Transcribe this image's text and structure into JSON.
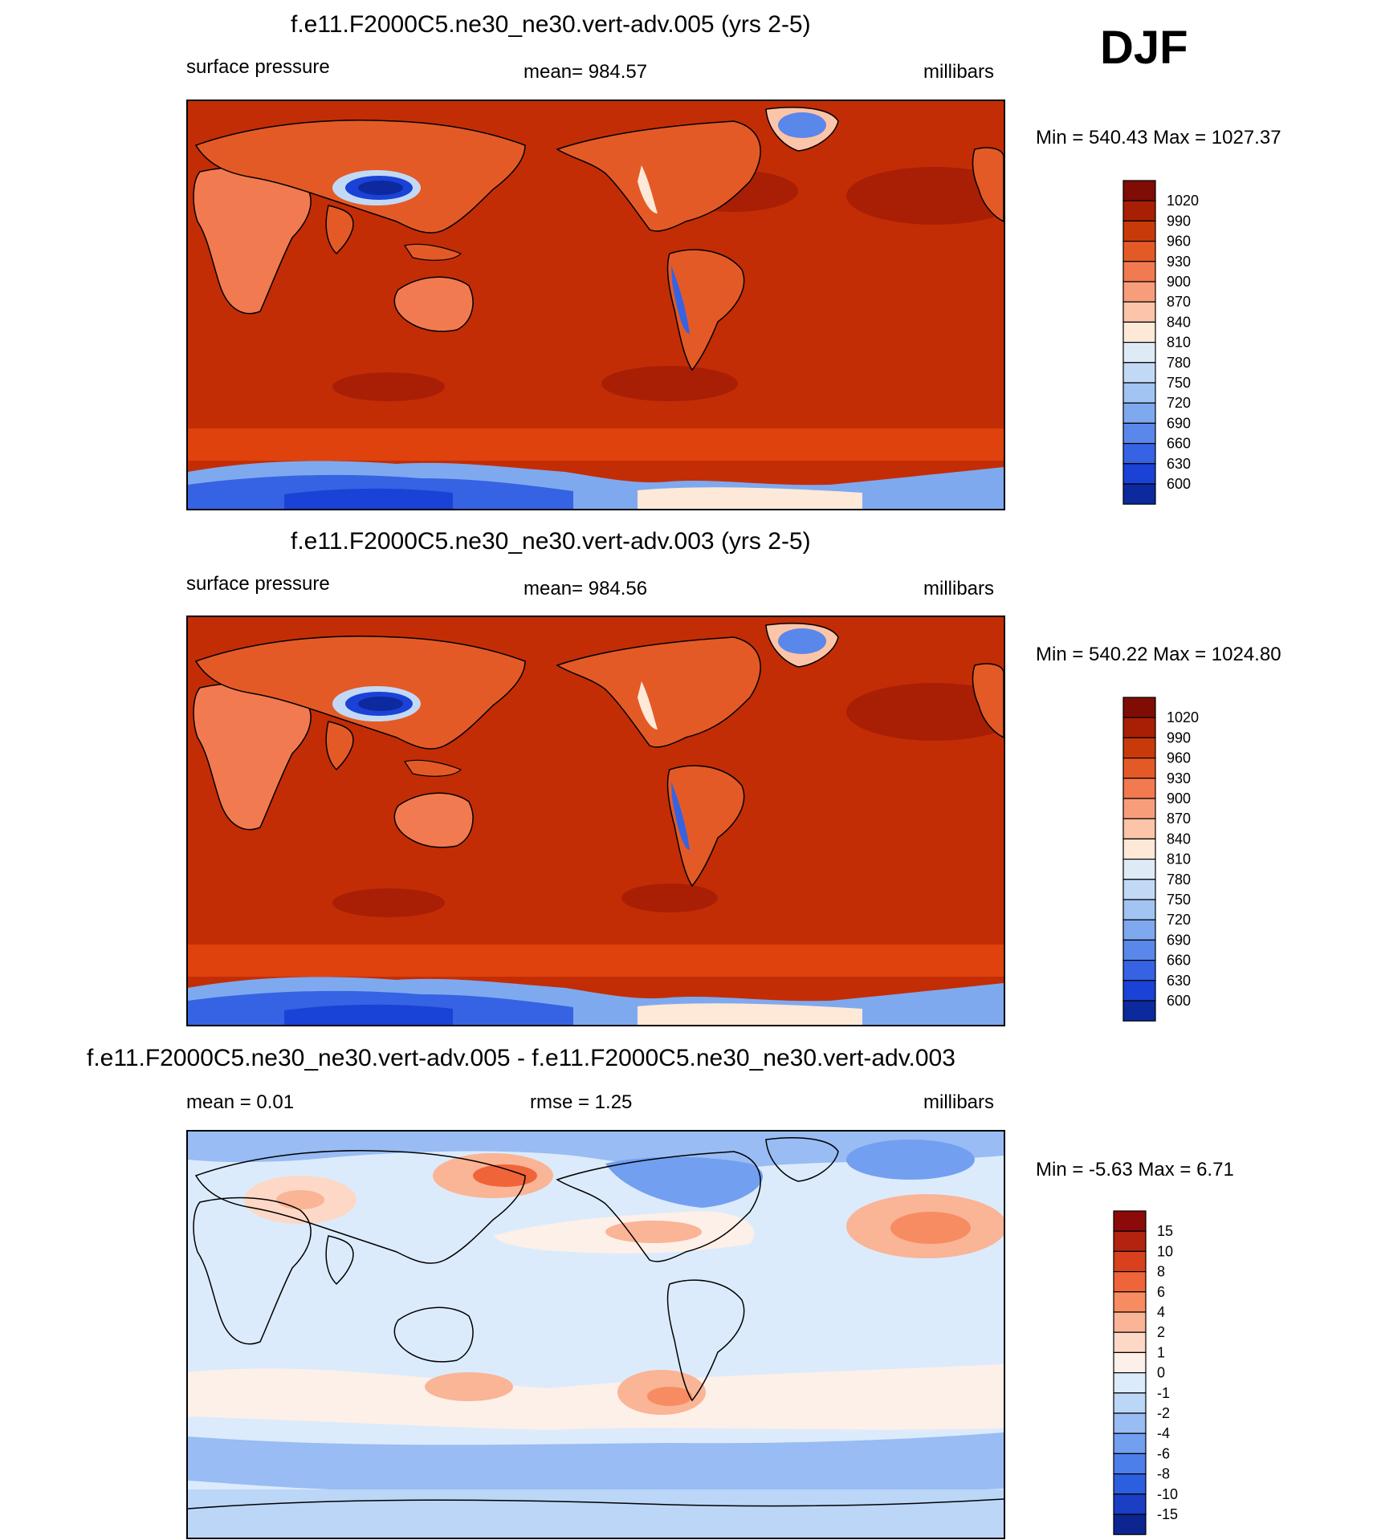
{
  "season_label": "DJF",
  "panels": [
    {
      "title": "f.e11.F2000C5.ne30_ne30.vert-adv.005 (yrs 2-5)",
      "variable": "surface pressure",
      "stat": "mean= 984.57",
      "units": "millibars",
      "minmax": "Min = 540.43 Max = 1027.37"
    },
    {
      "title": "f.e11.F2000C5.ne30_ne30.vert-adv.003 (yrs 2-5)",
      "variable": "surface pressure",
      "stat": "mean= 984.56",
      "units": "millibars",
      "minmax": "Min = 540.22 Max = 1024.80"
    },
    {
      "title": "f.e11.F2000C5.ne30_ne30.vert-adv.005 - f.e11.F2000C5.ne30_ne30.vert-adv.003",
      "stat_left": "mean =   0.01",
      "stat_mid": "rmse =   1.25",
      "units": "millibars",
      "minmax": "Min =  -5.63 Max =   6.71"
    }
  ],
  "chart_data": [
    {
      "type": "heatmap",
      "title": "f.e11.F2000C5.ne30_ne30.vert-adv.005 (yrs 2-5)",
      "variable": "surface pressure",
      "units": "millibars",
      "mean": 984.57,
      "min": 540.43,
      "max": 1027.37,
      "projection": "cylindrical equidistant, Pacific-centered",
      "colorbar": {
        "labels": [
          "1020",
          "990",
          "960",
          "930",
          "900",
          "870",
          "840",
          "810",
          "780",
          "750",
          "720",
          "690",
          "660",
          "630",
          "600"
        ],
        "colors": [
          "#7f0d05",
          "#a81f05",
          "#c93a0b",
          "#e45a26",
          "#f27a50",
          "#f89d7b",
          "#fcc4a8",
          "#fee8d8",
          "#deebf7",
          "#c2d9f5",
          "#a1c4f2",
          "#7fa9ee",
          "#5a87ea",
          "#3563e3",
          "#1a42d6",
          "#0c2a9e"
        ]
      }
    },
    {
      "type": "heatmap",
      "title": "f.e11.F2000C5.ne30_ne30.vert-adv.003 (yrs 2-5)",
      "variable": "surface pressure",
      "units": "millibars",
      "mean": 984.56,
      "min": 540.22,
      "max": 1024.8,
      "projection": "cylindrical equidistant, Pacific-centered",
      "colorbar": {
        "labels": [
          "1020",
          "990",
          "960",
          "930",
          "900",
          "870",
          "840",
          "810",
          "780",
          "750",
          "720",
          "690",
          "660",
          "630",
          "600"
        ],
        "colors": [
          "#7f0d05",
          "#a81f05",
          "#c93a0b",
          "#e45a26",
          "#f27a50",
          "#f89d7b",
          "#fcc4a8",
          "#fee8d8",
          "#deebf7",
          "#c2d9f5",
          "#a1c4f2",
          "#7fa9ee",
          "#5a87ea",
          "#3563e3",
          "#1a42d6",
          "#0c2a9e"
        ]
      }
    },
    {
      "type": "heatmap",
      "title": "f.e11.F2000C5.ne30_ne30.vert-adv.005 - f.e11.F2000C5.ne30_ne30.vert-adv.003",
      "units": "millibars",
      "mean": 0.01,
      "rmse": 1.25,
      "min": -5.63,
      "max": 6.71,
      "projection": "cylindrical equidistant, Pacific-centered",
      "colorbar": {
        "labels": [
          "15",
          "10",
          "8",
          "6",
          "4",
          "2",
          "1",
          "0",
          "-1",
          "-2",
          "-4",
          "-6",
          "-8",
          "-10",
          "-15"
        ],
        "colors": [
          "#8c0a0a",
          "#b3230f",
          "#d8401e",
          "#f0643a",
          "#f78c62",
          "#fab496",
          "#fdd8c6",
          "#fdf0e8",
          "#dcebfb",
          "#bcd6f8",
          "#98bcf3",
          "#739ff0",
          "#4d7feb",
          "#2c5ee0",
          "#1a3fc4",
          "#0c2590"
        ]
      }
    }
  ]
}
